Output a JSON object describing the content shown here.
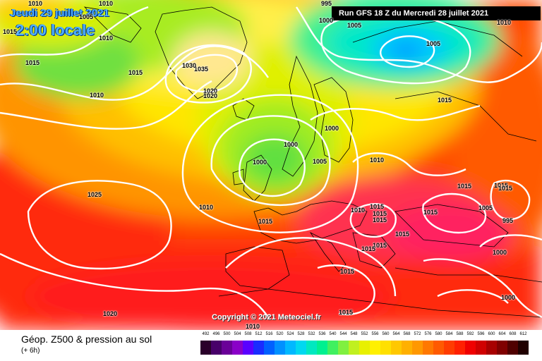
{
  "header": {
    "date": "Jeudi 29 juillet 2021",
    "time": "2:00 locale",
    "run": "Run GFS 18 Z du Mercredi 28 juillet 2021"
  },
  "copyright": "Copyright © 2021 Meteociel.fr",
  "footer": {
    "title": "Géop. Z500 & pression au sol",
    "subtitle": "(+ 6h)"
  },
  "legend": {
    "values": [
      "492",
      "496",
      "500",
      "504",
      "508",
      "512",
      "516",
      "520",
      "524",
      "528",
      "532",
      "536",
      "540",
      "544",
      "548",
      "552",
      "556",
      "560",
      "564",
      "568",
      "572",
      "576",
      "580",
      "584",
      "588",
      "592",
      "596",
      "600",
      "604",
      "608",
      "612"
    ],
    "colors": [
      "#2a002a",
      "#48006a",
      "#6a0098",
      "#8a00c8",
      "#5a00ff",
      "#1a2cff",
      "#0060ff",
      "#0090ff",
      "#00b8ff",
      "#00d8f0",
      "#00e8c0",
      "#00f090",
      "#40f060",
      "#80f040",
      "#c0f020",
      "#e8f000",
      "#fff000",
      "#ffe000",
      "#ffc800",
      "#ffb000",
      "#ff9800",
      "#ff7800",
      "#ff5a00",
      "#ff3c00",
      "#ff2000",
      "#f00000",
      "#d00000",
      "#a80000",
      "#800000",
      "#500000",
      "#200000"
    ]
  },
  "isobars": [
    {
      "id": "l1",
      "text": "1010"
    },
    {
      "id": "l2",
      "text": "1015"
    },
    {
      "id": "l3",
      "text": "1005"
    },
    {
      "id": "l4",
      "text": "1010"
    },
    {
      "id": "l5",
      "text": "1015"
    },
    {
      "id": "l6",
      "text": "1010"
    },
    {
      "id": "l7",
      "text": "1035"
    },
    {
      "id": "l8",
      "text": "1030"
    },
    {
      "id": "l9",
      "text": "1020"
    },
    {
      "id": "l10",
      "text": "1020"
    },
    {
      "id": "l11",
      "text": "995"
    },
    {
      "id": "l12",
      "text": "1000"
    },
    {
      "id": "l13",
      "text": "1005"
    },
    {
      "id": "l14",
      "text": "1005"
    },
    {
      "id": "l15",
      "text": "1010"
    },
    {
      "id": "l16",
      "text": "1015"
    },
    {
      "id": "l17",
      "text": "1000"
    },
    {
      "id": "l18",
      "text": "1000"
    },
    {
      "id": "l19",
      "text": "1000"
    },
    {
      "id": "l20",
      "text": "1005"
    },
    {
      "id": "l21",
      "text": "1010"
    },
    {
      "id": "l22",
      "text": "1025"
    },
    {
      "id": "l23",
      "text": "1010"
    },
    {
      "id": "l24",
      "text": "1015"
    },
    {
      "id": "l25",
      "text": "1010"
    },
    {
      "id": "l26",
      "text": "1015"
    },
    {
      "id": "l27",
      "text": "1015"
    },
    {
      "id": "l28",
      "text": "1015"
    },
    {
      "id": "l29",
      "text": "1015"
    },
    {
      "id": "l30",
      "text": "1015"
    },
    {
      "id": "l31",
      "text": "1015"
    },
    {
      "id": "l32",
      "text": "1015"
    },
    {
      "id": "l33",
      "text": "1005"
    },
    {
      "id": "l34",
      "text": "995"
    },
    {
      "id": "l35",
      "text": "1000"
    },
    {
      "id": "l36",
      "text": "1015"
    },
    {
      "id": "l37",
      "text": "1015"
    },
    {
      "id": "l38",
      "text": "1000"
    },
    {
      "id": "l39",
      "text": "1020"
    },
    {
      "id": "l40",
      "text": "1010"
    },
    {
      "id": "l41",
      "text": "1015"
    },
    {
      "id": "l42",
      "text": "1015"
    },
    {
      "id": "l43",
      "text": "1015"
    },
    {
      "id": "l44",
      "text": "1015"
    },
    {
      "id": "l45",
      "text": "1010"
    }
  ]
}
